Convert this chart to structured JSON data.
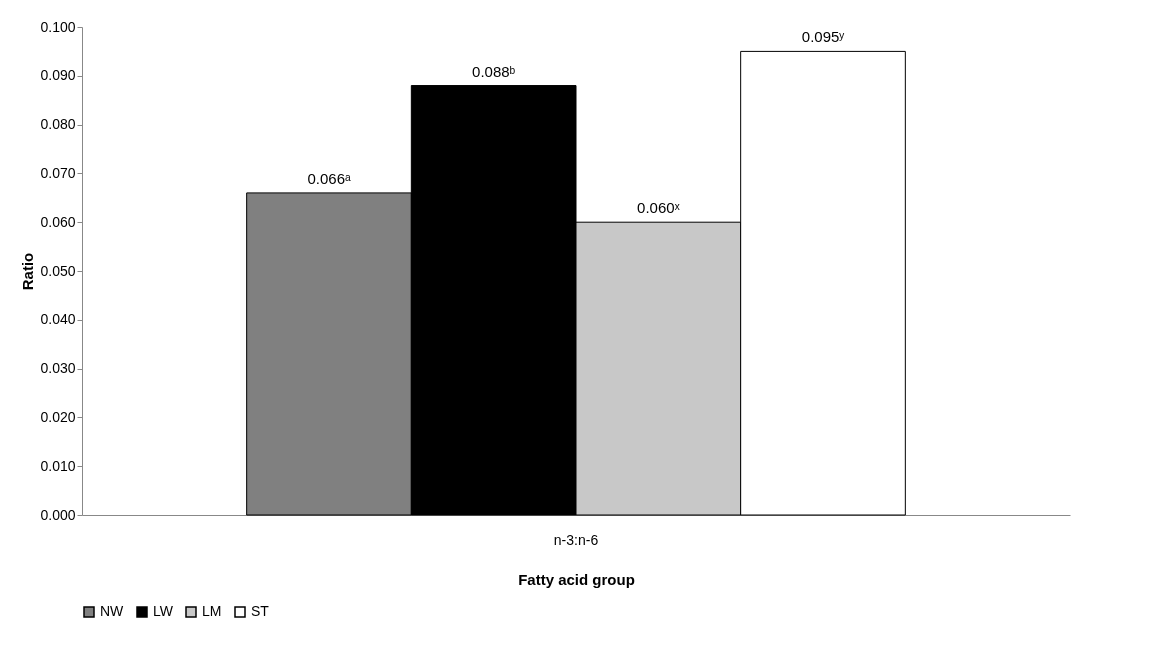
{
  "chart_data": {
    "type": "bar",
    "xlabel": "Fatty acid group",
    "ylabel": "Ratio",
    "categories": [
      "n-3:n-6"
    ],
    "series": [
      {
        "name": "NW",
        "color": "#808080",
        "values": [
          0.066
        ],
        "value_labels": [
          "0.066ᵃ"
        ]
      },
      {
        "name": "LW",
        "color": "#000000",
        "values": [
          0.088
        ],
        "value_labels": [
          "0.088ᵇ"
        ]
      },
      {
        "name": "LM",
        "color": "#c8c8c8",
        "values": [
          0.06
        ],
        "value_labels": [
          "0.060ˣ"
        ]
      },
      {
        "name": "ST",
        "color": "#ffffff",
        "values": [
          0.095
        ],
        "value_labels": [
          "0.095ʸ"
        ]
      }
    ],
    "ylim": [
      0,
      0.1
    ],
    "yticks": [
      {
        "value": 0,
        "label": "0.000"
      },
      {
        "value": 0.01,
        "label": "0.010"
      },
      {
        "value": 0.02,
        "label": "0.020"
      },
      {
        "value": 0.03,
        "label": "0.030"
      },
      {
        "value": 0.04,
        "label": "0.040"
      },
      {
        "value": 0.05,
        "label": "0.050"
      },
      {
        "value": 0.06,
        "label": "0.060"
      },
      {
        "value": 0.07,
        "label": "0.070"
      },
      {
        "value": 0.08,
        "label": "0.080"
      },
      {
        "value": 0.09,
        "label": "0.090"
      },
      {
        "value": 0.1,
        "label": "0.100"
      }
    ],
    "grid": false,
    "legend": "bottom"
  }
}
